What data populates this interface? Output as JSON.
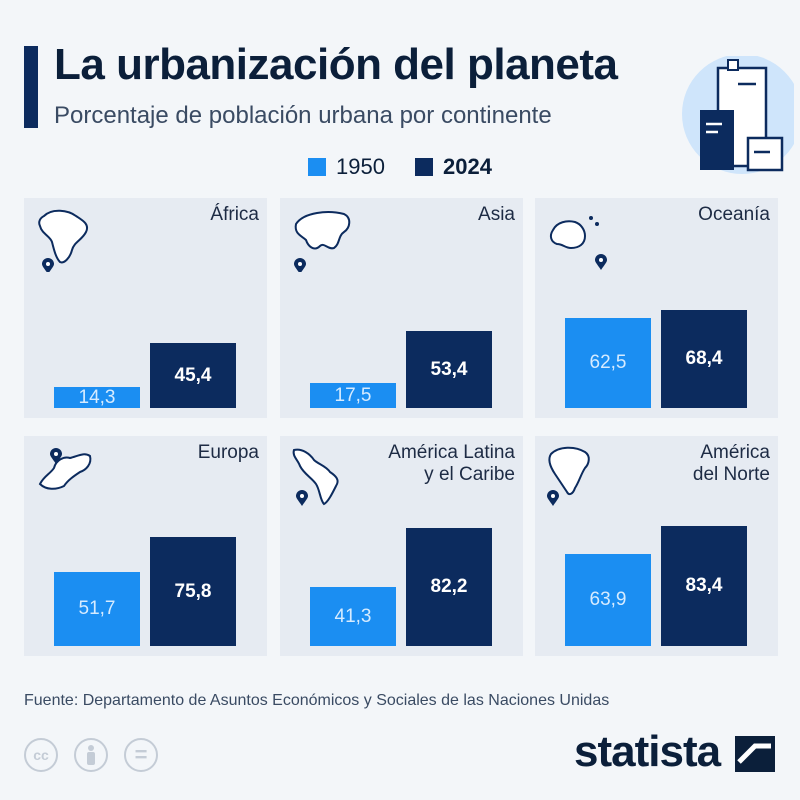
{
  "header": {
    "title": "La urbanización del planeta",
    "subtitle": "Porcentaje de población urbana por continente"
  },
  "legend": {
    "label_1950": "1950",
    "label_2024": "2024"
  },
  "colors": {
    "c1950": "#1b8ef2",
    "c2024": "#0c2b5e",
    "panel": "#e6ebf2",
    "accent": "#0c2b5e"
  },
  "chart_data": {
    "type": "bar",
    "title": "La urbanización del planeta",
    "subtitle": "Porcentaje de población urbana por continente",
    "categories": [
      "África",
      "Asia",
      "Oceanía",
      "Europa",
      "América Latina y el Caribe",
      "América del Norte"
    ],
    "series": [
      {
        "name": "1950",
        "values": [
          14.3,
          17.5,
          62.5,
          51.7,
          41.3,
          63.9
        ],
        "labels": [
          "14,3",
          "17,5",
          "62,5",
          "51,7",
          "41,3",
          "63,9"
        ]
      },
      {
        "name": "2024",
        "values": [
          45.4,
          53.4,
          68.4,
          75.8,
          82.2,
          83.4
        ],
        "labels": [
          "45,4",
          "53,4",
          "68,4",
          "75,8",
          "82,2",
          "83,4"
        ]
      }
    ],
    "panel_labels": [
      "África",
      "Asia",
      "Oceanía",
      "Europa",
      "América Latina\ny el Caribe",
      "América\ndel Norte"
    ],
    "icons": [
      "africa-map-icon",
      "asia-map-icon",
      "oceania-map-icon",
      "europe-map-icon",
      "latin-america-map-icon",
      "north-america-map-icon"
    ],
    "ylim": [
      0,
      100
    ],
    "legend_position": "top-center"
  },
  "footer": {
    "source": "Fuente: Departamento de Asuntos Económicos y Sociales de las Naciones Unidas",
    "cc_label": "cc",
    "equals_label": "=",
    "brand": "statista"
  }
}
